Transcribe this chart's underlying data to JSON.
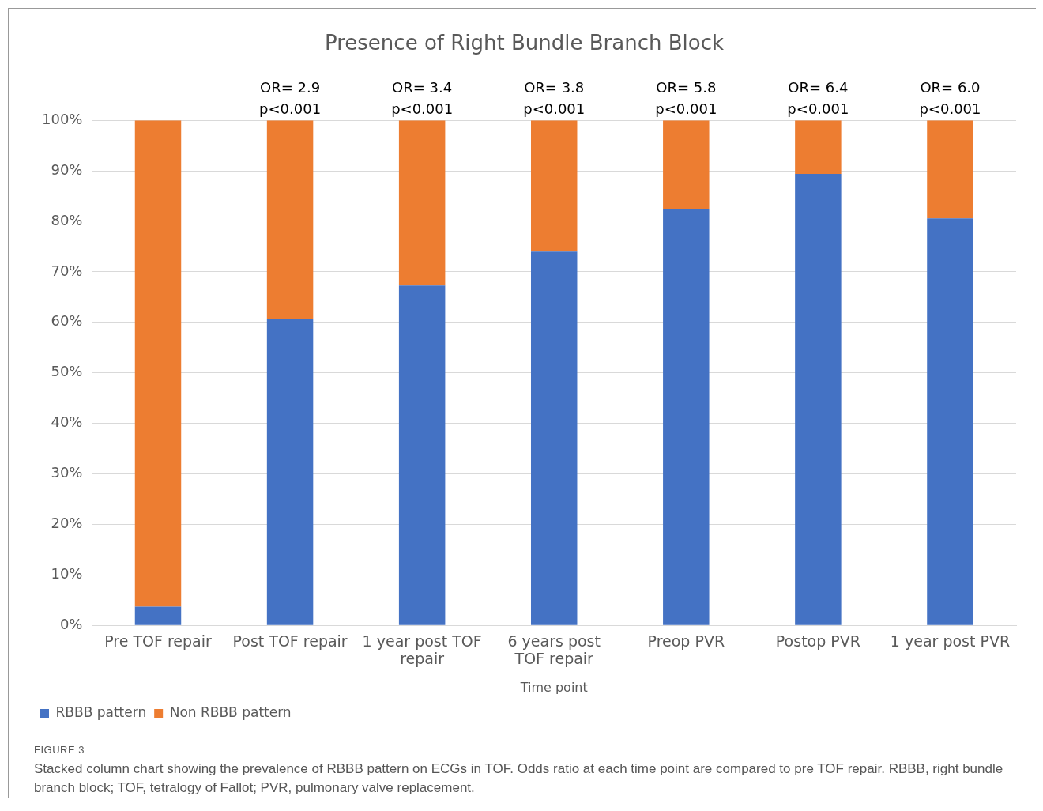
{
  "chart_data": {
    "type": "bar",
    "stacked": true,
    "title": "Presence of Right Bundle Branch Block",
    "xlabel": "Time point",
    "categories": [
      "Pre TOF repair",
      "Post TOF repair",
      "1 year post TOF repair",
      "6 years post TOF repair",
      "Preop PVR",
      "Postop PVR",
      "1 year post PVR"
    ],
    "series": [
      {
        "name": "RBBB pattern",
        "color": "#4472c4",
        "values": [
          3.7,
          60.6,
          67.3,
          74.0,
          82.4,
          89.4,
          80.6
        ]
      },
      {
        "name": "Non RBBB pattern",
        "color": "#ed7d31",
        "values": [
          96.3,
          39.4,
          32.7,
          26.0,
          17.6,
          10.6,
          19.4
        ]
      }
    ],
    "ylim": [
      0,
      100
    ],
    "yticks": [
      {
        "value": 0,
        "label": "0%"
      },
      {
        "value": 10,
        "label": "10%"
      },
      {
        "value": 20,
        "label": "20%"
      },
      {
        "value": 30,
        "label": "30%"
      },
      {
        "value": 40,
        "label": "40%"
      },
      {
        "value": 50,
        "label": "50%"
      },
      {
        "value": 60,
        "label": "60%"
      },
      {
        "value": 70,
        "label": "70%"
      },
      {
        "value": 80,
        "label": "80%"
      },
      {
        "value": 90,
        "label": "90%"
      },
      {
        "value": 100,
        "label": "100%"
      }
    ],
    "grid": "y",
    "legend": "bottom left",
    "annotations": [
      {
        "text": "OR= 2.9\np<0.001",
        "x": "Post TOF repair",
        "y": 100
      },
      {
        "text": "OR= 3.4\np<0.001",
        "x": "1 year post TOF repair",
        "y": 100
      },
      {
        "text": "OR= 3.8\np<0.001",
        "x": "6 years post TOF repair",
        "y": 100
      },
      {
        "text": "OR= 5.8\np<0.001",
        "x": "Preop PVR",
        "y": 100
      },
      {
        "text": "OR= 6.4\np<0.001",
        "x": "Postop PVR",
        "y": 100
      },
      {
        "text": "OR= 6.0\np<0.001",
        "x": "1 year post PVR",
        "y": 100
      },
      "FIGURE 3",
      "Stacked column chart showing the prevalence of RBBB pattern on ECGs in TOF. Odds ratio at each time point are compared to pre TOF repair. RBBB, right bundle branch block; TOF, tetralogy of Fallot; PVR, pulmonary valve replacement."
    ]
  }
}
